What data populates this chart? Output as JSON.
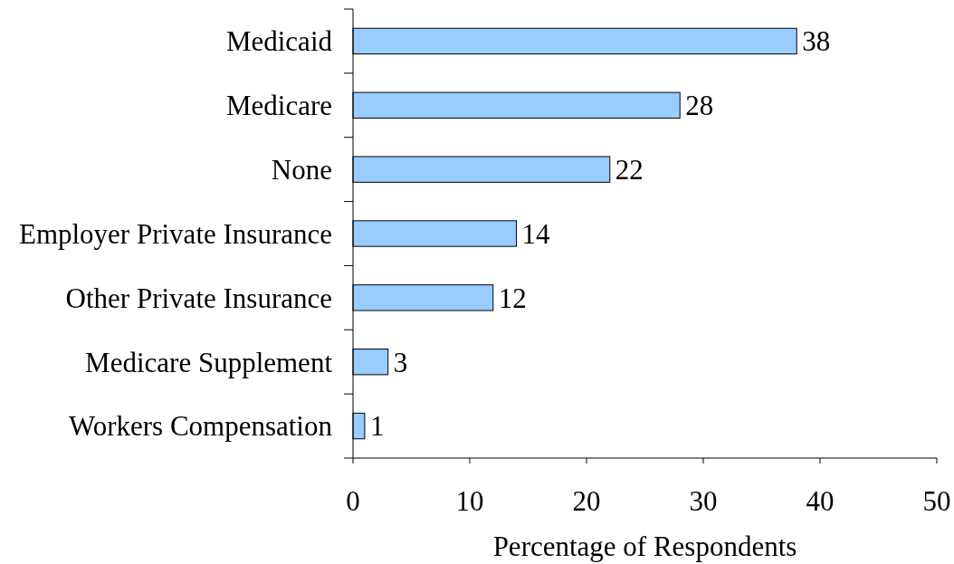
{
  "chart_data": {
    "type": "bar",
    "orientation": "horizontal",
    "categories": [
      "Medicaid",
      "Medicare",
      "None",
      "Employer Private Insurance",
      "Other Private Insurance",
      "Medicare Supplement",
      "Workers Compensation"
    ],
    "values": [
      38,
      28,
      22,
      14,
      12,
      3,
      1
    ],
    "color": "#99ccff",
    "xlim": [
      0,
      50
    ],
    "xticks": [
      0,
      10,
      20,
      30,
      40,
      50
    ],
    "xlabel": "Percentage of Respondents",
    "data_labels": true,
    "grid": false
  }
}
